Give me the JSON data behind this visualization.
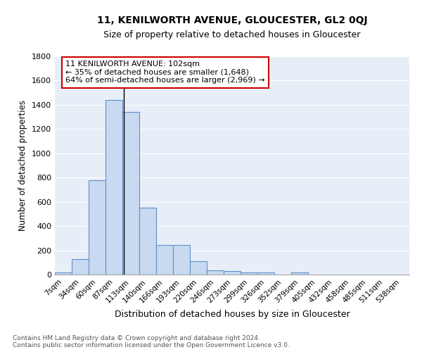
{
  "title": "11, KENILWORTH AVENUE, GLOUCESTER, GL2 0QJ",
  "subtitle": "Size of property relative to detached houses in Gloucester",
  "xlabel": "Distribution of detached houses by size in Gloucester",
  "ylabel": "Number of detached properties",
  "bin_labels": [
    "7sqm",
    "34sqm",
    "60sqm",
    "87sqm",
    "113sqm",
    "140sqm",
    "166sqm",
    "193sqm",
    "220sqm",
    "246sqm",
    "273sqm",
    "299sqm",
    "326sqm",
    "352sqm",
    "379sqm",
    "405sqm",
    "432sqm",
    "458sqm",
    "485sqm",
    "511sqm",
    "538sqm"
  ],
  "bar_values": [
    18,
    130,
    780,
    1440,
    1340,
    550,
    245,
    245,
    108,
    35,
    28,
    15,
    15,
    0,
    18,
    0,
    0,
    0,
    0,
    0,
    0
  ],
  "bar_color": "#c8d9f0",
  "bar_edge_color": "#6090c8",
  "vline_x": 3.577,
  "annotation_title": "11 KENILWORTH AVENUE: 102sqm",
  "annotation_line1": "← 35% of detached houses are smaller (1,648)",
  "annotation_line2": "64% of semi-detached houses are larger (2,969) →",
  "annotation_box_facecolor": "#ffffff",
  "annotation_box_edgecolor": "#cc0000",
  "vline_color": "#000000",
  "bg_color": "#e8eef8",
  "grid_color": "#ffffff",
  "fig_bg_color": "#ffffff",
  "footer_line1": "Contains HM Land Registry data © Crown copyright and database right 2024.",
  "footer_line2": "Contains public sector information licensed under the Open Government Licence v3.0.",
  "ylim": [
    0,
    1800
  ],
  "yticks": [
    0,
    200,
    400,
    600,
    800,
    1000,
    1200,
    1400,
    1600,
    1800
  ]
}
